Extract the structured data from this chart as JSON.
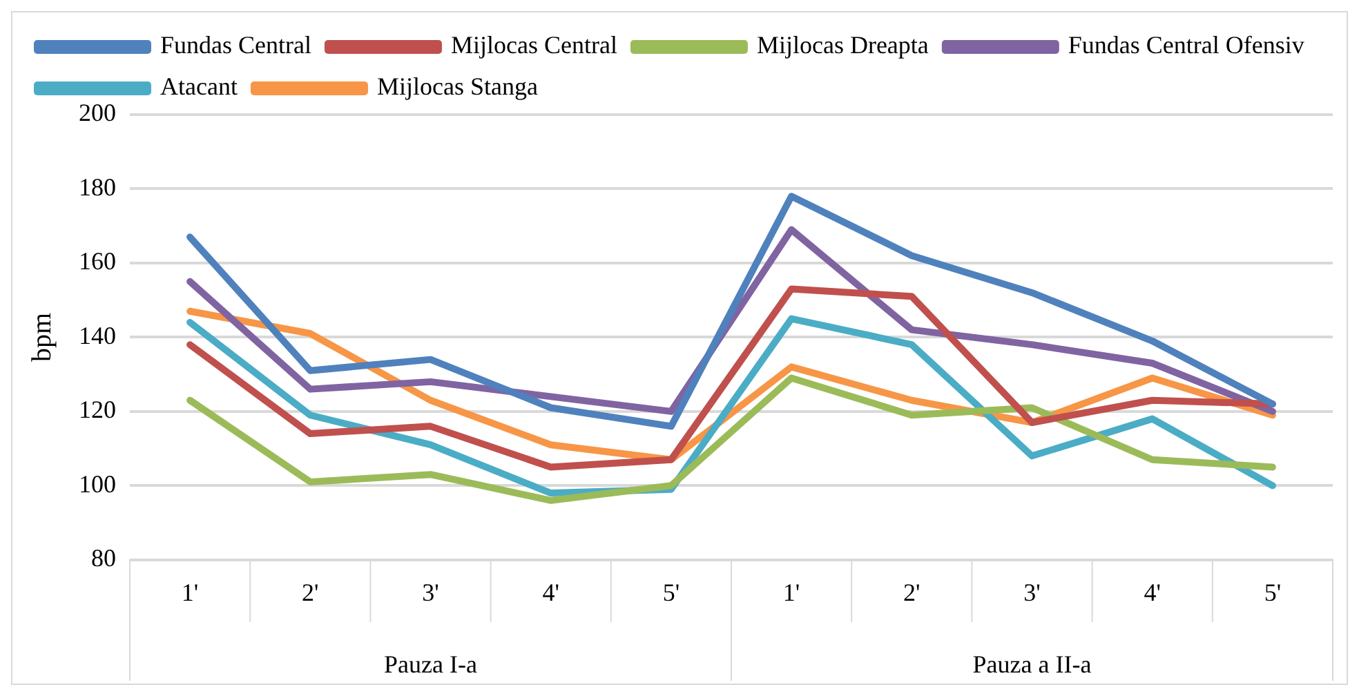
{
  "chart_data": {
    "type": "line",
    "ylabel": "bpm",
    "categories": [
      "1'",
      "2'",
      "3'",
      "4'",
      "5'",
      "1'",
      "2'",
      "3'",
      "4'",
      "5'"
    ],
    "annotations": [
      "Pauza I-a",
      "Pauza a II-a"
    ],
    "series": [
      {
        "name": "Fundas Central",
        "color": "#4f81bd",
        "values": [
          167,
          131,
          134,
          121,
          116,
          178,
          162,
          152,
          139,
          122
        ]
      },
      {
        "name": "Mijlocas Central",
        "color": "#c0504d",
        "values": [
          138,
          114,
          116,
          105,
          107,
          153,
          151,
          117,
          123,
          122
        ]
      },
      {
        "name": "Mijlocas Dreapta",
        "color": "#9bbb59",
        "values": [
          123,
          101,
          103,
          96,
          100,
          129,
          119,
          121,
          107,
          105
        ]
      },
      {
        "name": "Fundas Central Ofensiv",
        "color": "#8064a2",
        "values": [
          155,
          126,
          128,
          124,
          120,
          169,
          142,
          138,
          133,
          120
        ]
      },
      {
        "name": "Atacant",
        "color": "#4bacc6",
        "values": [
          144,
          119,
          111,
          98,
          99,
          145,
          138,
          108,
          118,
          100
        ]
      },
      {
        "name": "Mijlocas Stanga",
        "color": "#f79646",
        "values": [
          147,
          141,
          123,
          111,
          107,
          132,
          123,
          117,
          129,
          119
        ]
      }
    ],
    "ylim": [
      80,
      200
    ],
    "yticks": [
      80,
      100,
      120,
      140,
      160,
      180,
      200
    ],
    "grid": "y",
    "legend": "top",
    "marker": "none",
    "line_style": "solid"
  }
}
